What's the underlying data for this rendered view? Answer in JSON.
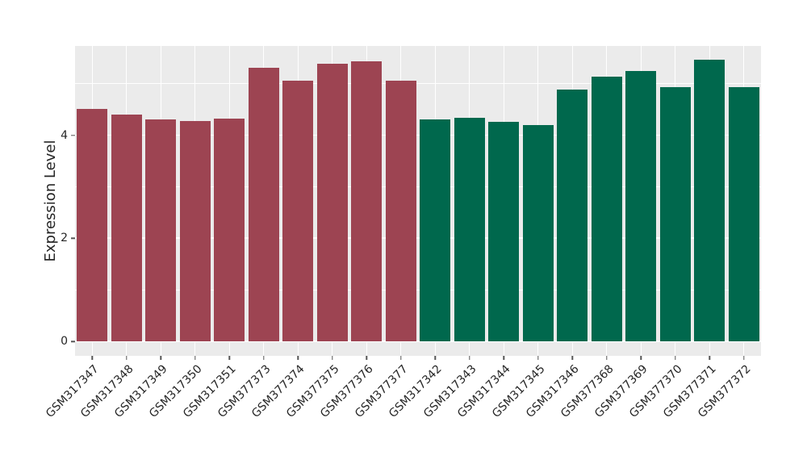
{
  "chart_data": {
    "type": "bar",
    "title": "",
    "xlabel": "",
    "ylabel": "Expression Level",
    "categories": [
      "GSM317347",
      "GSM317348",
      "GSM317349",
      "GSM317350",
      "GSM317351",
      "GSM377373",
      "GSM377374",
      "GSM377375",
      "GSM377376",
      "GSM377377",
      "GSM317342",
      "GSM317343",
      "GSM317344",
      "GSM317345",
      "GSM317346",
      "GSM377368",
      "GSM377369",
      "GSM377370",
      "GSM377371",
      "GSM377372"
    ],
    "values": [
      4.51,
      4.4,
      4.3,
      4.27,
      4.32,
      5.3,
      5.05,
      5.38,
      5.44,
      5.05,
      4.31,
      4.34,
      4.26,
      4.19,
      4.88,
      5.14,
      5.25,
      4.93,
      5.46,
      4.93
    ],
    "bar_colors": [
      "#9D4452",
      "#9D4452",
      "#9D4452",
      "#9D4452",
      "#9D4452",
      "#9D4452",
      "#9D4452",
      "#9D4452",
      "#9D4452",
      "#9D4452",
      "#00684D",
      "#00684D",
      "#00684D",
      "#00684D",
      "#00684D",
      "#00684D",
      "#00684D",
      "#00684D",
      "#00684D",
      "#00684D"
    ],
    "group_colors": {
      "left_group": "#9D4452",
      "right_group": "#00684D"
    },
    "ylim": [
      -0.28,
      5.73
    ],
    "yticks": [
      0,
      2,
      4
    ],
    "ytick_labels": [
      "0",
      "2",
      "4"
    ],
    "gridline_values": [
      0,
      1,
      2,
      3,
      4,
      5
    ],
    "grid": "on",
    "legend": "none",
    "x_label_rotation_deg": 45,
    "panel_background": "#EBEBEB",
    "figure_background": "#FFFFFF",
    "gridline_color": "#FFFFFF",
    "text_color": "#262626",
    "tick_mark_color": "#555555"
  }
}
